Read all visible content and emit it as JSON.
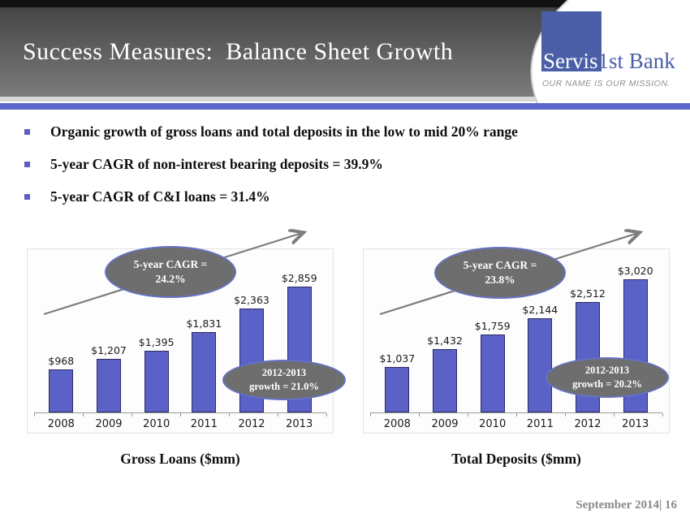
{
  "header": {
    "title": "Success Measures:  Balance Sheet Growth",
    "logo": {
      "brand_primary": "Servis",
      "brand_secondary": "1st Bank",
      "tagline": "OUR NAME IS OUR MISSION."
    }
  },
  "bullets": [
    "Organic growth of gross loans and total deposits in the low to mid 20% range",
    "5-year CAGR of non-interest bearing deposits = 39.9%",
    "5-year CAGR of C&I loans = 31.4%"
  ],
  "chart_data": [
    {
      "type": "bar",
      "title": "Gross Loans ($mm)",
      "categories": [
        "2008",
        "2009",
        "2010",
        "2011",
        "2012",
        "2013"
      ],
      "values": [
        968,
        1207,
        1395,
        1831,
        2363,
        2859
      ],
      "labels": [
        "$968",
        "$1,207",
        "$1,395",
        "$1,831",
        "$2,363",
        "$2,859"
      ],
      "xlabel": "",
      "ylabel": "",
      "ylim": [
        0,
        3200
      ],
      "grid": false,
      "legend": false,
      "annotations": {
        "cagr": {
          "line1": "5-year CAGR =",
          "line2": "24.2%"
        },
        "growth": {
          "line1": "2012-2013",
          "line2": "growth = 21.0%"
        }
      }
    },
    {
      "type": "bar",
      "title": "Total Deposits ($mm)",
      "categories": [
        "2008",
        "2009",
        "2010",
        "2011",
        "2012",
        "2013"
      ],
      "values": [
        1037,
        1432,
        1759,
        2144,
        2512,
        3020
      ],
      "labels": [
        "$1,037",
        "$1,432",
        "$1,759",
        "$2,144",
        "$2,512",
        "$3,020"
      ],
      "xlabel": "",
      "ylabel": "",
      "ylim": [
        0,
        3200
      ],
      "grid": false,
      "legend": false,
      "annotations": {
        "cagr": {
          "line1": "5-year CAGR =",
          "line2": "23.8%"
        },
        "growth": {
          "line1": "2012-2013",
          "line2": "growth = 20.2%"
        }
      }
    }
  ],
  "footer": {
    "text": "September 2014| 16"
  },
  "colors": {
    "accent_bar": "#5e68cc",
    "bar_fill": "#5a62c8",
    "bar_border": "#2b2b63",
    "ellipse_fill": "#6e6e6e",
    "ellipse_border": "#6672c2",
    "logo_blue": "#4a5fa8",
    "bullet_marker": "#5b5fc7",
    "arrow": "#7d7d7d"
  }
}
